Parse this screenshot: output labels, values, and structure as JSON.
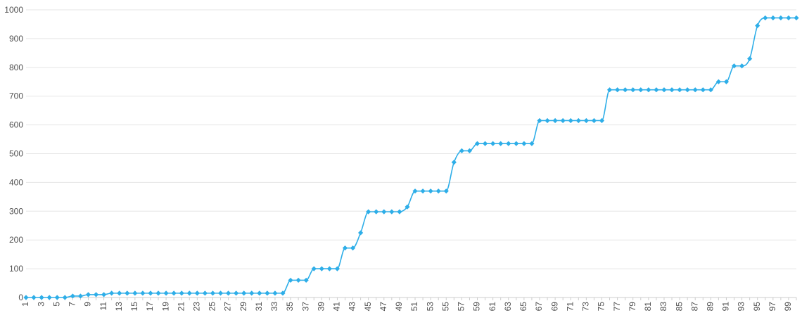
{
  "chart_data": {
    "type": "line",
    "title": "",
    "xlabel": "",
    "ylabel": "",
    "ylim": [
      0,
      1000
    ],
    "y_ticks": [
      0,
      100,
      200,
      300,
      400,
      500,
      600,
      700,
      800,
      900,
      1000
    ],
    "x_tick_labels": [
      "1",
      "3",
      "5",
      "7",
      "9",
      "11",
      "13",
      "15",
      "17",
      "19",
      "21",
      "23",
      "25",
      "27",
      "29",
      "31",
      "33",
      "35",
      "37",
      "39",
      "41",
      "43",
      "45",
      "47",
      "49",
      "51",
      "53",
      "55",
      "57",
      "59",
      "61",
      "63",
      "65",
      "67",
      "69",
      "71",
      "73",
      "75",
      "77",
      "79",
      "81",
      "83",
      "85",
      "87",
      "89",
      "91",
      "93",
      "95",
      "97",
      "99"
    ],
    "x_tick_rotation": -90,
    "grid": true,
    "legend": "none",
    "x": [
      1,
      2,
      3,
      4,
      5,
      6,
      7,
      8,
      9,
      10,
      11,
      12,
      13,
      14,
      15,
      16,
      17,
      18,
      19,
      20,
      21,
      22,
      23,
      24,
      25,
      26,
      27,
      28,
      29,
      30,
      31,
      32,
      33,
      34,
      35,
      36,
      37,
      38,
      39,
      40,
      41,
      42,
      43,
      44,
      45,
      46,
      47,
      48,
      49,
      50,
      51,
      52,
      53,
      54,
      55,
      56,
      57,
      58,
      59,
      60,
      61,
      62,
      63,
      64,
      65,
      66,
      67,
      68,
      69,
      70,
      71,
      72,
      73,
      74,
      75,
      76,
      77,
      78,
      79,
      80,
      81,
      82,
      83,
      84,
      85,
      86,
      87,
      88,
      89,
      90,
      91,
      92,
      93,
      94,
      95,
      96,
      97,
      98,
      99,
      100
    ],
    "series": [
      {
        "color": "#2eaee8",
        "marker": "diamond",
        "values": [
          0,
          0,
          0,
          0,
          0,
          0,
          5,
          5,
          10,
          10,
          10,
          15,
          15,
          15,
          15,
          15,
          15,
          15,
          15,
          15,
          15,
          15,
          15,
          15,
          15,
          15,
          15,
          15,
          15,
          15,
          15,
          15,
          15,
          15,
          60,
          60,
          60,
          100,
          100,
          100,
          100,
          172,
          172,
          225,
          298,
          298,
          298,
          298,
          298,
          315,
          370,
          370,
          370,
          370,
          370,
          470,
          510,
          510,
          535,
          535,
          535,
          535,
          535,
          535,
          535,
          535,
          615,
          615,
          615,
          615,
          615,
          615,
          615,
          615,
          615,
          722,
          722,
          722,
          722,
          722,
          722,
          722,
          722,
          722,
          722,
          722,
          722,
          722,
          722,
          750,
          750,
          805,
          805,
          830,
          945,
          972,
          972,
          972,
          972,
          972
        ]
      }
    ]
  }
}
